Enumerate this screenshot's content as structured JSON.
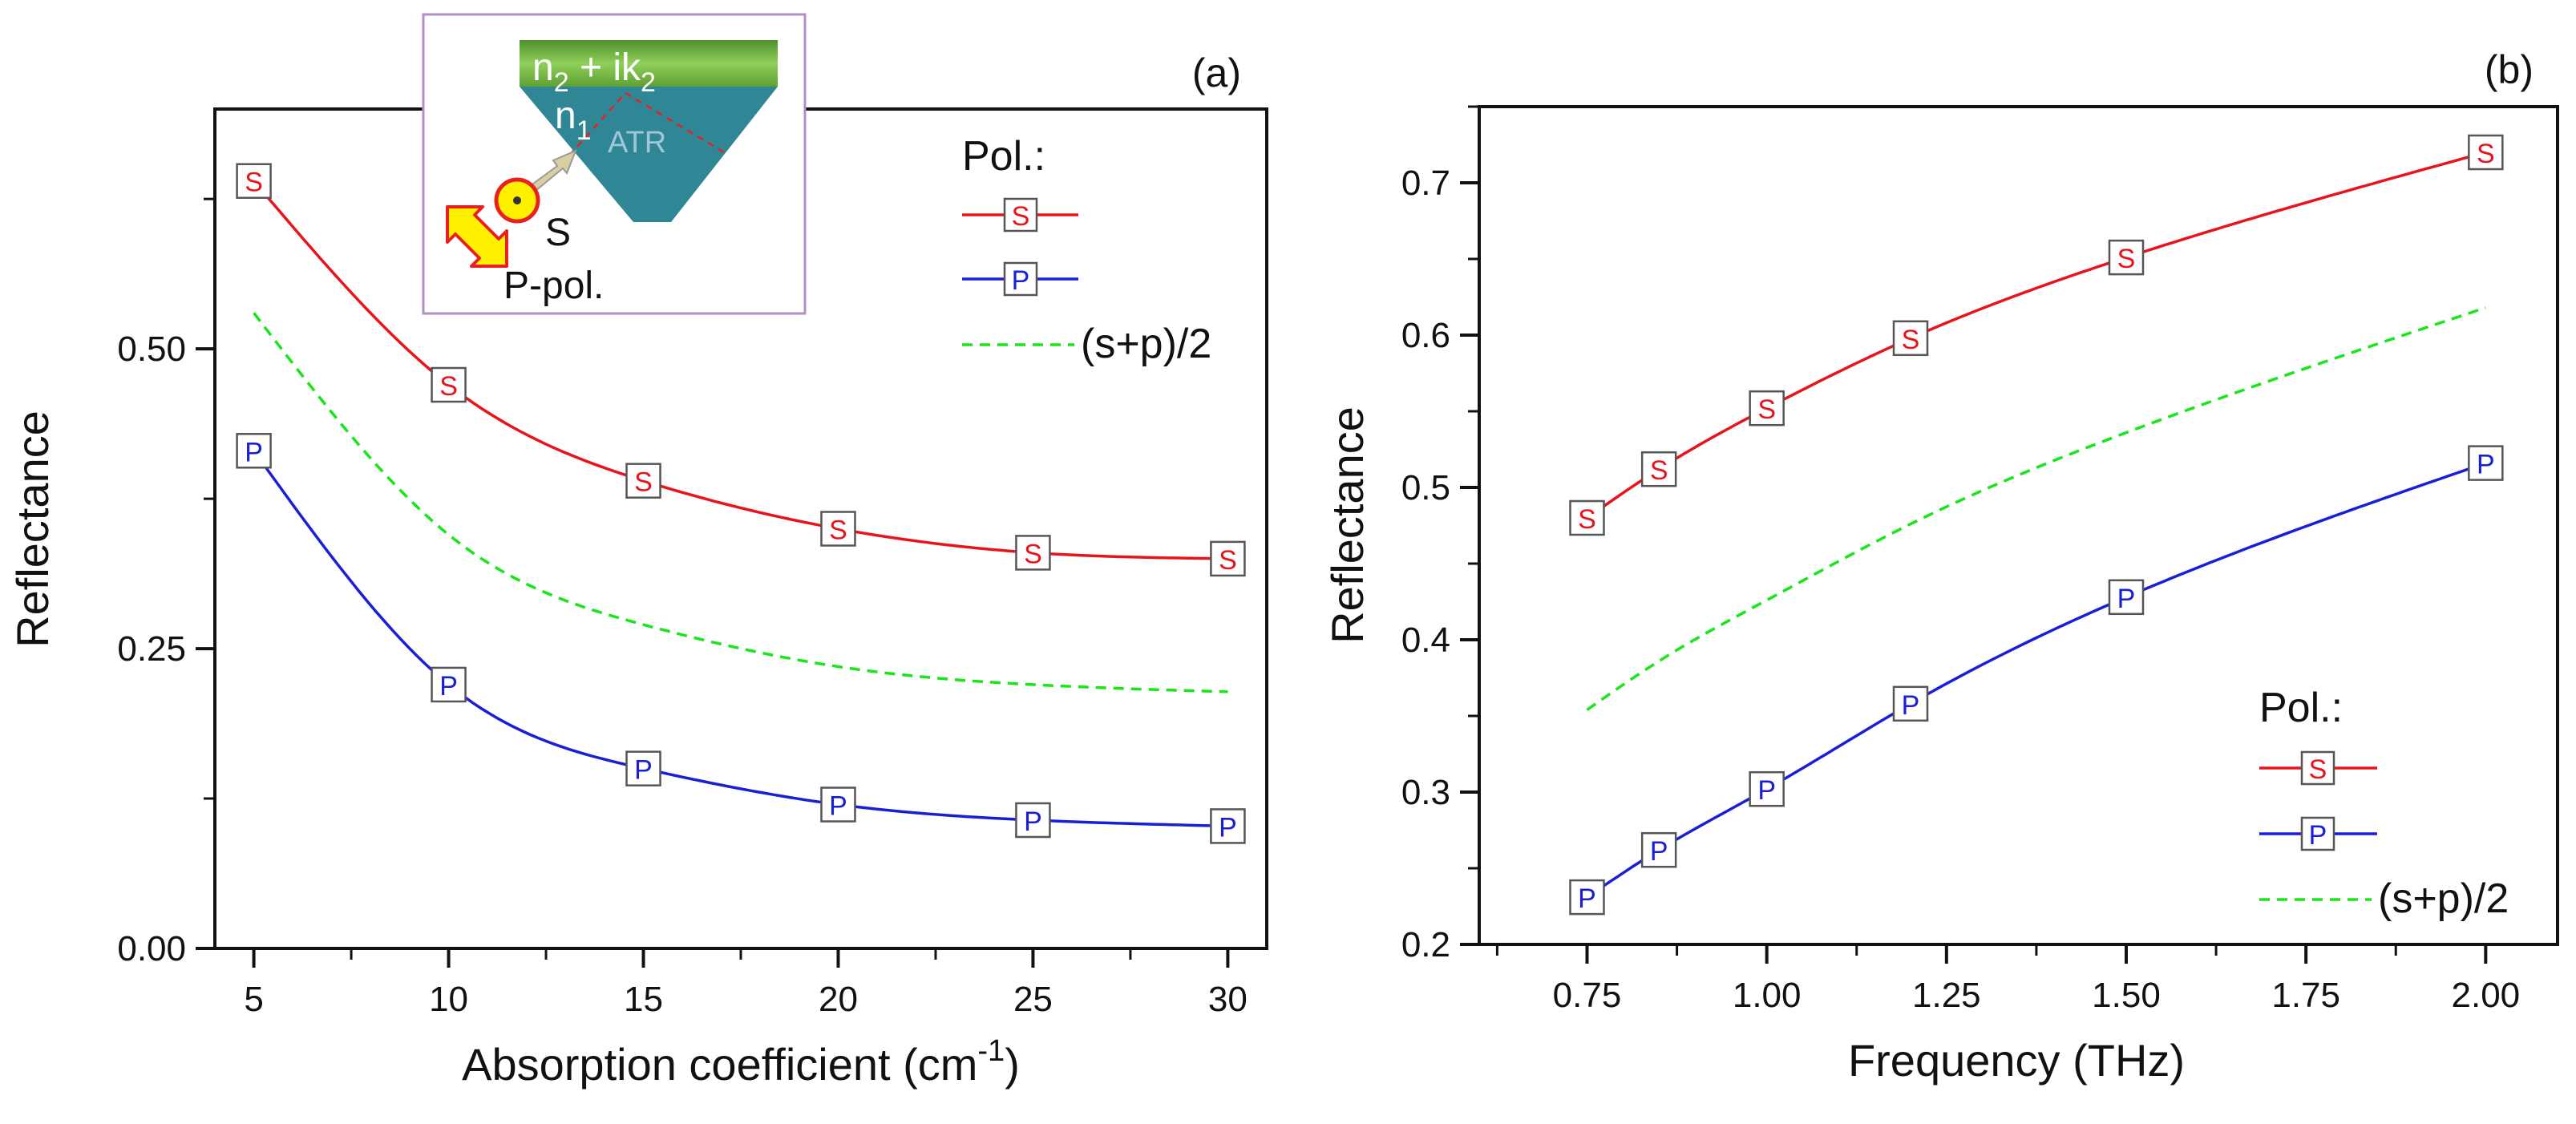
{
  "colors": {
    "s": "#e8141b",
    "p": "#1a1fd6",
    "avg": "#19e619",
    "prism": "#2f8796",
    "film": "#76b041",
    "beam": "#fff000",
    "beam_edge": "#e82020",
    "inset_border": "#b28fc7"
  },
  "chart_data": [
    {
      "type": "line",
      "panel_label": "(a)",
      "xlabel": "Absorption coefficient (cm",
      "xlabel_sup": "-1",
      "xlabel_tail": ")",
      "ylabel": "Reflectance",
      "xlim": [
        4,
        31
      ],
      "ylim": [
        0,
        0.7
      ],
      "x_ticks": [
        5,
        10,
        15,
        20,
        25,
        30
      ],
      "x_tick_labels": [
        "5",
        "10",
        "15",
        "20",
        "25",
        "30"
      ],
      "y_ticks": [
        0,
        0.25,
        0.5
      ],
      "y_tick_labels": [
        "0.00",
        "0.25",
        "0.50"
      ],
      "series": [
        {
          "name": "S",
          "marker": "S",
          "x": [
            5,
            10,
            15,
            20,
            25,
            30
          ],
          "values": [
            0.64,
            0.47,
            0.39,
            0.35,
            0.33,
            0.325
          ]
        },
        {
          "name": "P",
          "marker": "P",
          "x": [
            5,
            10,
            15,
            20,
            25,
            30
          ],
          "values": [
            0.415,
            0.22,
            0.15,
            0.12,
            0.107,
            0.102
          ]
        },
        {
          "name": "(s+p)/2",
          "style": "dashed",
          "x": [
            5,
            10,
            15,
            20,
            25,
            30
          ],
          "values": [
            0.53,
            0.345,
            0.27,
            0.235,
            0.22,
            0.214
          ]
        }
      ],
      "legend": {
        "title": "Pol.:",
        "entries": [
          "S",
          "P",
          "(s+p)/2"
        ],
        "placement": "top-right"
      },
      "inset": {
        "film_label": "n",
        "film_sub1": "2",
        "film_mid": " + ik",
        "film_sub2": "2",
        "prism_label": "n",
        "prism_sub": "1",
        "atr_label": "ATR",
        "s_label": "S",
        "p_label": "P-pol."
      }
    },
    {
      "type": "line",
      "panel_label": "(b)",
      "xlabel": "Frequency (THz)",
      "ylabel": "Reflectance",
      "xlim": [
        0.6,
        2.1
      ],
      "ylim": [
        0.2,
        0.75
      ],
      "x_ticks": [
        0.75,
        1.0,
        1.25,
        1.5,
        1.75,
        2.0
      ],
      "x_tick_labels": [
        "0.75",
        "1.00",
        "1.25",
        "1.50",
        "1.75",
        "2.00"
      ],
      "y_ticks": [
        0.2,
        0.3,
        0.4,
        0.5,
        0.6,
        0.7
      ],
      "y_tick_labels": [
        "0.2",
        "0.3",
        "0.4",
        "0.5",
        "0.6",
        "0.7"
      ],
      "series": [
        {
          "name": "S",
          "marker": "S",
          "x": [
            0.75,
            0.85,
            1.0,
            1.2,
            1.5,
            2.0
          ],
          "values": [
            0.48,
            0.512,
            0.552,
            0.598,
            0.651,
            0.72
          ]
        },
        {
          "name": "P",
          "marker": "P",
          "x": [
            0.75,
            0.85,
            1.0,
            1.2,
            1.5,
            2.0
          ],
          "values": [
            0.231,
            0.262,
            0.302,
            0.358,
            0.428,
            0.516
          ]
        },
        {
          "name": "(s+p)/2",
          "style": "dashed",
          "x": [
            0.75,
            0.85,
            1.0,
            1.2,
            1.5,
            2.0
          ],
          "values": [
            0.354,
            0.386,
            0.426,
            0.476,
            0.536,
            0.618
          ]
        }
      ],
      "legend": {
        "title": "Pol.:",
        "entries": [
          "S",
          "P",
          "(s+p)/2"
        ],
        "placement": "bottom-right"
      }
    }
  ]
}
